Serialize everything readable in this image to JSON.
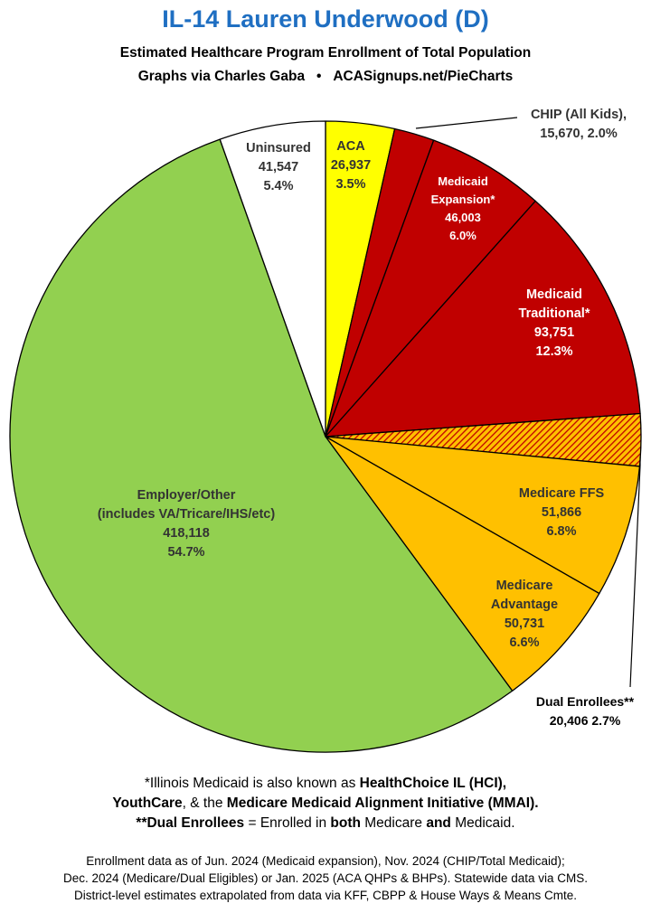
{
  "header": {
    "title": "IL-14 Lauren Underwood (D)",
    "subtitle_line1": "Estimated Healthcare Program Enrollment of Total Population",
    "subtitle_credit": "Graphs via Charles Gaba",
    "subtitle_bullet": "•",
    "subtitle_site": "ACASignups.net/PieCharts"
  },
  "chart_data": {
    "type": "pie",
    "start": "12 o'clock",
    "direction": "clockwise",
    "slices": [
      {
        "key": "aca",
        "label_lines": [
          "ACA",
          "26,937",
          "3.5%"
        ],
        "value": 26937,
        "percent": 3.5,
        "color": "#ffff00",
        "text_color": "#333333"
      },
      {
        "key": "chip",
        "label_lines": [
          "CHIP (All Kids),",
          "15,670, 2.0%"
        ],
        "value": 15670,
        "percent": 2.0,
        "color": "#c00000",
        "text_color": "#333333"
      },
      {
        "key": "medicaid-expansion",
        "label_lines": [
          "Medicaid",
          "Expansion*",
          "46,003",
          "6.0%"
        ],
        "value": 46003,
        "percent": 6.0,
        "color": "#c00000",
        "text_color": "#ffffff"
      },
      {
        "key": "medicaid-traditional",
        "label_lines": [
          "Medicaid",
          "Traditional*",
          "93,751",
          "12.3%"
        ],
        "value": 93751,
        "percent": 12.3,
        "color": "#c00000",
        "text_color": "#ffffff"
      },
      {
        "key": "dual-enrollees",
        "label_lines": [
          "Dual Enrollees**",
          "20,406 2.7%"
        ],
        "value": 20406,
        "percent": 2.7,
        "color": "#ffc000",
        "hatch_color": "#c00000",
        "text_color": "#000000"
      },
      {
        "key": "medicare-ffs",
        "label_lines": [
          "Medicare FFS",
          "51,866",
          "6.8%"
        ],
        "value": 51866,
        "percent": 6.8,
        "color": "#ffc000",
        "text_color": "#333333"
      },
      {
        "key": "medicare-advantage",
        "label_lines": [
          "Medicare",
          "Advantage",
          "50,731",
          "6.6%"
        ],
        "value": 50731,
        "percent": 6.6,
        "color": "#ffc000",
        "text_color": "#333333"
      },
      {
        "key": "employer-other",
        "label_lines": [
          "Employer/Other",
          "(includes VA/Tricare/IHS/etc)",
          "418,118",
          "54.7%"
        ],
        "value": 418118,
        "percent": 54.7,
        "color": "#92d050",
        "text_color": "#333333"
      },
      {
        "key": "uninsured",
        "label_lines": [
          "Uninsured",
          "41,547",
          "5.4%"
        ],
        "value": 41547,
        "percent": 5.4,
        "color": "#ffffff",
        "text_color": "#333333"
      }
    ]
  },
  "footnotes": {
    "line1_plain": "*Illinois Medicaid is also known as ",
    "line1_bold": "HealthChoice IL (HCI),",
    "line2_bold_a": "YouthCare",
    "line2_plain_a": ", & the ",
    "line2_bold_b": "Medicare Medicaid Alignment Initiative (MMAI).",
    "line3_bold_a": "**Dual Enrollees",
    "line3_plain_a": " = Enrolled in ",
    "line3_bold_b": "both",
    "line3_plain_b": " Medicare ",
    "line3_bold_c": "and",
    "line3_plain_c": " Medicaid."
  },
  "sources": {
    "line1": "Enrollment data as of Jun. 2024 (Medicaid expansion), Nov. 2024 (CHIP/Total Medicaid);",
    "line2": "Dec. 2024 (Medicare/Dual Eligibles) or Jan. 2025 (ACA QHPs & BHPs). Statewide data via CMS.",
    "line3": "District-level estimates extrapolated from data via KFF, CBPP & House Ways & Means Cmte."
  }
}
